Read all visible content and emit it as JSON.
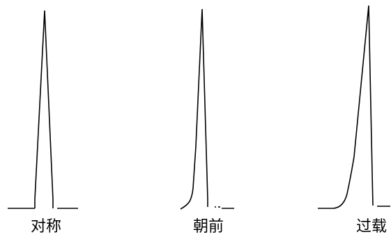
{
  "panels": [
    {
      "id": "symmetric",
      "label": "对称"
    },
    {
      "id": "fronting",
      "label": "朝前"
    },
    {
      "id": "overload",
      "label": "过载"
    }
  ],
  "colors": {
    "line": "#000000",
    "background": "#ffffff"
  }
}
